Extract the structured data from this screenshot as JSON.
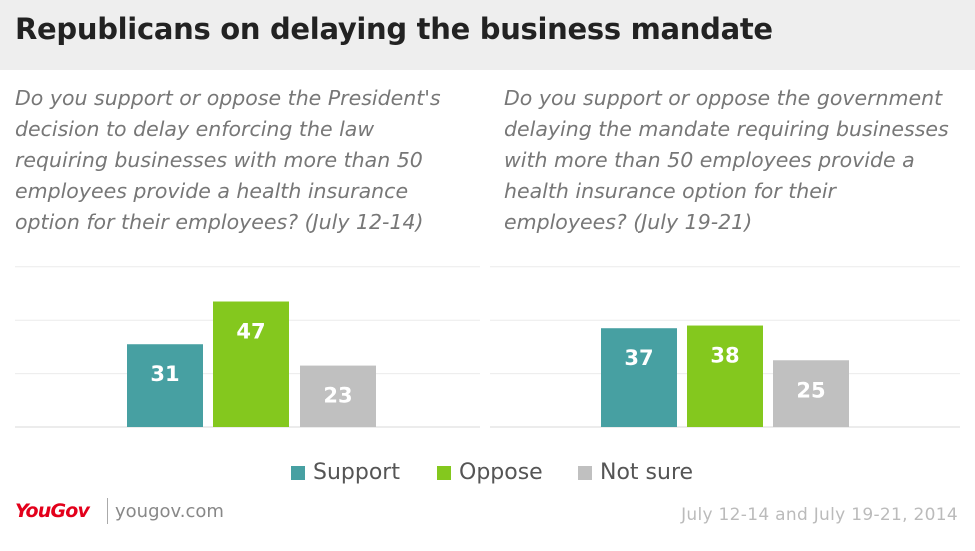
{
  "title": "Republicans on delaying the business mandate",
  "colors": {
    "support": "#47a0a2",
    "oppose": "#84c81e",
    "not_sure": "#c0c0c0"
  },
  "chart_data": [
    {
      "type": "bar",
      "title": "Do you support or oppose the President's\ndecision to delay enforcing the law\nrequiring businesses with more than 50\nemployees provide a health insurance\noption for their employees? (July 12-14)",
      "categories": [
        "Support",
        "Oppose",
        "Not sure"
      ],
      "values": [
        31,
        47,
        23
      ],
      "ylim": [
        0,
        60
      ],
      "grid": true
    },
    {
      "type": "bar",
      "title": "Do you support or oppose the government\ndelaying the mandate requiring businesses\nwith more than 50 employees provide a\nhealth insurance option for their\nemployees? (July 19-21)",
      "categories": [
        "Support",
        "Oppose",
        "Not sure"
      ],
      "values": [
        37,
        38,
        25
      ],
      "ylim": [
        0,
        60
      ],
      "grid": true
    }
  ],
  "legend": {
    "placement": "bottom-center",
    "items": [
      {
        "label": "Support"
      },
      {
        "label": "Oppose"
      },
      {
        "label": "Not sure"
      }
    ]
  },
  "footer": {
    "logo": "YouGov",
    "site": "yougov.com",
    "date": "July 12-14 and July 19-21, 2014"
  }
}
